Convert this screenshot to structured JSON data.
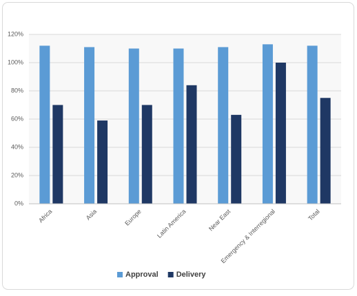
{
  "chart_data": {
    "type": "bar",
    "categories": [
      "Africa",
      "Asia",
      "Europe",
      "Latin America",
      "Near East",
      "Emergency & Interregional",
      "Total"
    ],
    "series": [
      {
        "name": "Approval",
        "color": "#5b9bd5",
        "values": [
          112,
          111,
          110,
          110,
          111,
          113,
          112
        ]
      },
      {
        "name": "Delivery",
        "color": "#1f3864",
        "values": [
          70,
          59,
          70,
          84,
          63,
          100,
          75
        ]
      }
    ],
    "ylim": [
      0,
      120
    ],
    "yticks": [
      {
        "value": 0,
        "label": "0%"
      },
      {
        "value": 20,
        "label": "20%"
      },
      {
        "value": 40,
        "label": "40%"
      },
      {
        "value": 60,
        "label": "60%"
      },
      {
        "value": 80,
        "label": "80%"
      },
      {
        "value": 100,
        "label": "100%"
      },
      {
        "value": 120,
        "label": "120%"
      }
    ],
    "grid": true,
    "legend": "bottom"
  }
}
